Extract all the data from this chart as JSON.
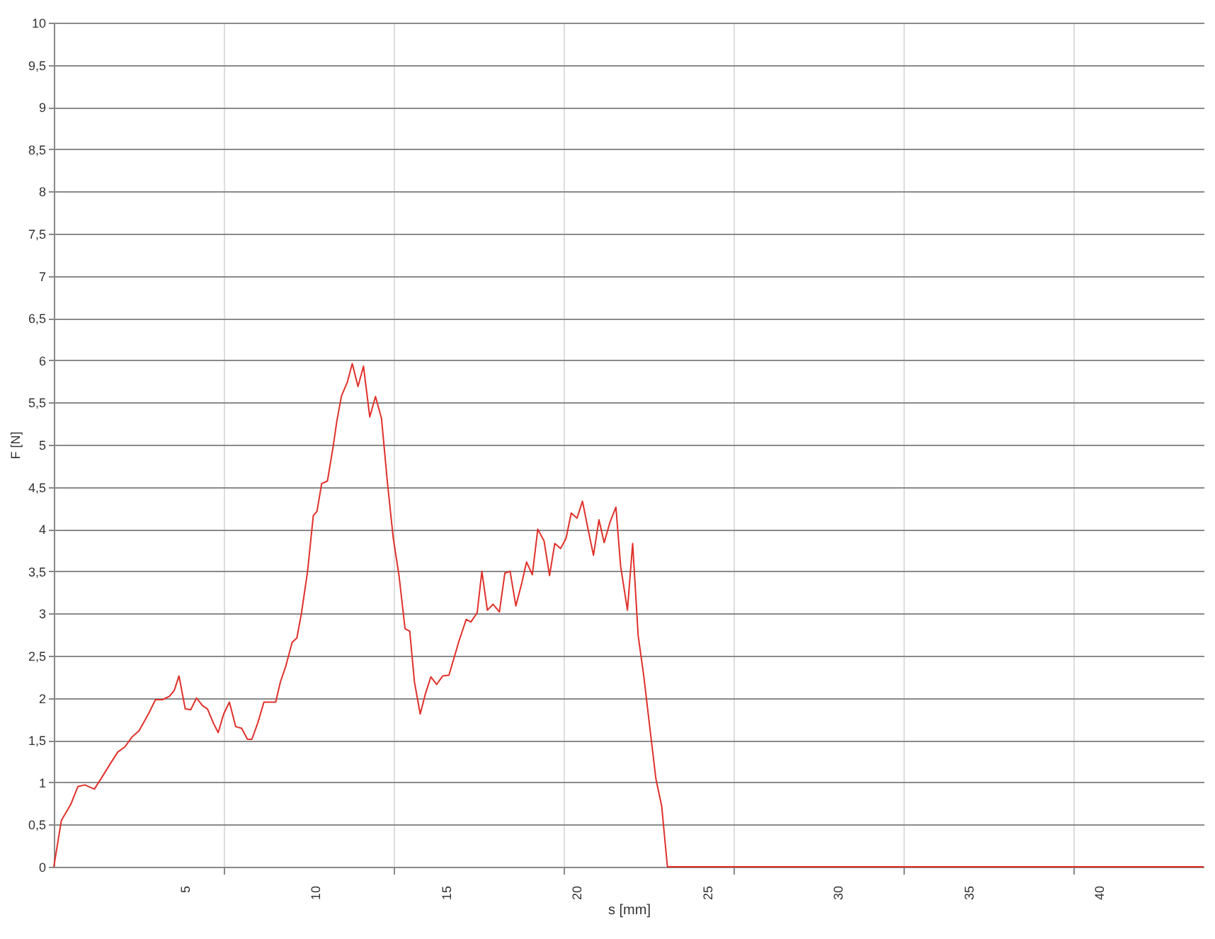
{
  "chart_data": {
    "type": "line",
    "xlabel": "s [mm]",
    "ylabel": "F [N]",
    "x": [
      0,
      0.29,
      0.65,
      0.92,
      1.19,
      1.55,
      1.82,
      2.18,
      2.45,
      2.72,
      3.0,
      3.26,
      3.62,
      3.89,
      4.16,
      4.43,
      4.61,
      4.79,
      5.03,
      5.24,
      5.46,
      5.69,
      5.88,
      6.11,
      6.29,
      6.5,
      6.72,
      6.96,
      7.19,
      7.41,
      7.58,
      7.8,
      8.04,
      8.31,
      8.49,
      8.67,
      8.88,
      9.12,
      9.3,
      9.48,
      9.71,
      9.93,
      10.07,
      10.25,
      10.47,
      10.69,
      10.83,
      11.01,
      11.23,
      11.42,
      11.64,
      11.85,
      12.09,
      12.31,
      12.54,
      12.77,
      12.99,
      13.21,
      13.44,
      13.62,
      13.8,
      14.02,
      14.22,
      14.43,
      14.65,
      14.88,
      15.12,
      15.51,
      15.78,
      15.96,
      16.2,
      16.38,
      16.59,
      16.81,
      17.05,
      17.26,
      17.46,
      17.68,
      17.89,
      18.09,
      18.31,
      18.52,
      18.76,
      18.97,
      19.17,
      19.39,
      19.6,
      19.8,
      20.02,
      20.23,
      20.43,
      20.65,
      20.86,
      21.06,
      21.28,
      21.51,
      21.69,
      21.95,
      22.15,
      22.36,
      22.58,
      22.81,
      23.04,
      23.26,
      23.48,
      44
    ],
    "series": [
      {
        "color": "#e0302a",
        "values": [
          0,
          0.55,
          0.74,
          0.95,
          0.97,
          0.92,
          1.05,
          1.23,
          1.36,
          1.42,
          1.54,
          1.61,
          1.81,
          1.98,
          1.98,
          2.02,
          2.09,
          2.26,
          1.87,
          1.86,
          2.0,
          1.91,
          1.87,
          1.7,
          1.59,
          1.81,
          1.95,
          1.66,
          1.64,
          1.51,
          1.51,
          1.7,
          1.95,
          1.95,
          1.95,
          2.19,
          2.38,
          2.66,
          2.71,
          3.01,
          3.5,
          4.16,
          4.21,
          4.54,
          4.57,
          4.98,
          5.28,
          5.58,
          5.74,
          5.96,
          5.69,
          5.93,
          5.33,
          5.57,
          5.31,
          4.54,
          3.89,
          3.45,
          2.82,
          2.79,
          2.19,
          1.81,
          2.05,
          2.25,
          2.16,
          2.26,
          2.27,
          2.68,
          2.93,
          2.9,
          3.01,
          3.5,
          3.04,
          3.11,
          3.02,
          3.48,
          3.5,
          3.09,
          3.34,
          3.61,
          3.46,
          4.0,
          3.86,
          3.45,
          3.83,
          3.77,
          3.89,
          4.19,
          4.13,
          4.33,
          4.02,
          3.69,
          4.11,
          3.84,
          4.08,
          4.26,
          3.56,
          3.04,
          3.83,
          2.74,
          2.25,
          1.64,
          1.04,
          0.72,
          0,
          0
        ]
      }
    ],
    "xlim": [
      0,
      44
    ],
    "xticks": [
      5,
      10,
      15,
      20,
      25,
      30,
      35,
      40,
      {
        "value": 6.5,
        "label": null
      },
      {
        "value": 13,
        "label": null
      },
      {
        "value": 19.5,
        "label": null
      },
      {
        "value": 26,
        "label": null
      },
      {
        "value": 32.5,
        "label": null
      },
      {
        "value": 39,
        "label": null
      }
    ],
    "ylim": [
      0,
      10
    ],
    "yticks": [
      0,
      {
        "value": 0.5,
        "label": "0,5"
      },
      1,
      {
        "value": 1.5,
        "label": "1,5"
      },
      2,
      {
        "value": 2.5,
        "label": "2,5"
      },
      3,
      {
        "value": 3.5,
        "label": "3,5"
      },
      4,
      {
        "value": 4.5,
        "label": "4,5"
      },
      5,
      {
        "value": 5.5,
        "label": "5,5"
      },
      6,
      {
        "value": 6.5,
        "label": "6,5"
      },
      7,
      {
        "value": 7.5,
        "label": "7,5"
      },
      8,
      {
        "value": 8.5,
        "label": "8,5"
      },
      9,
      {
        "value": 9.5,
        "label": "9,5"
      },
      10
    ],
    "grid": true,
    "marker": "none",
    "line_style": "solid"
  }
}
